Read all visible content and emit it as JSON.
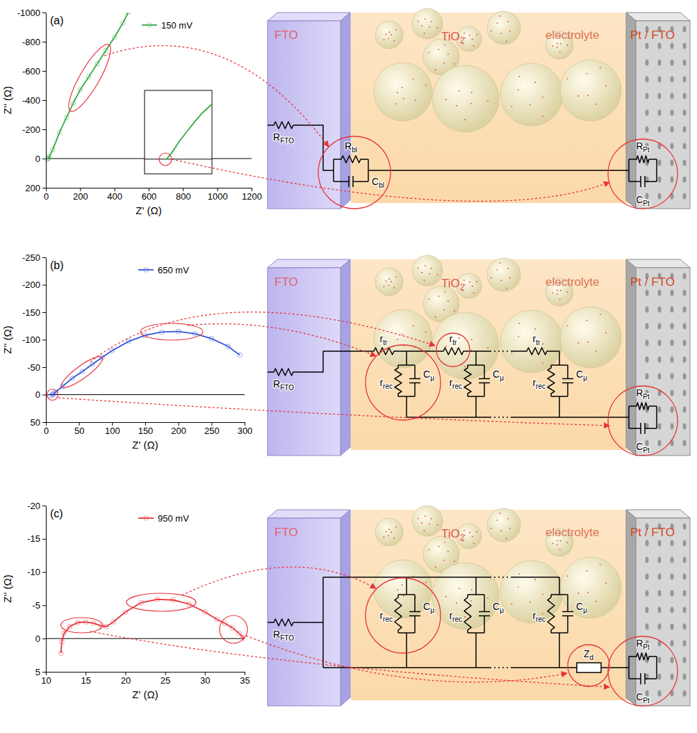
{
  "chart_data": [
    {
      "type": "line",
      "panel": "(a)",
      "x_label": "Z' (Ω)",
      "y_label": "Z'' (Ω)",
      "xlim": [
        0,
        1200
      ],
      "xticks": [
        0,
        200,
        400,
        600,
        800,
        1000,
        1200
      ],
      "ylim": [
        200,
        -1000
      ],
      "yticks": [
        -1000,
        -800,
        -600,
        -400,
        -200,
        0,
        200
      ],
      "x": [
        10,
        12,
        15,
        20,
        40,
        80,
        120,
        160,
        200,
        250,
        300,
        350,
        400,
        450,
        480
      ],
      "series": [
        {
          "name": "150 mV",
          "color": "#39a845",
          "marker": "circle",
          "values": [
            3,
            0,
            -5,
            -15,
            -60,
            -180,
            -280,
            -380,
            -470,
            -560,
            -650,
            -740,
            -830,
            -930,
            -1000
          ]
        }
      ],
      "legend": "upper center",
      "hlines": [
        0
      ],
      "inset": {
        "xlim": [
          -100,
          250
        ],
        "ylim": [
          150,
          -700
        ]
      }
    },
    {
      "type": "line",
      "panel": "(b)",
      "x_label": "Z' (Ω)",
      "y_label": "Z'' (Ω)",
      "xlim": [
        0,
        300
      ],
      "xticks": [
        0,
        50,
        100,
        150,
        200,
        250,
        300
      ],
      "ylim": [
        50,
        -250
      ],
      "yticks": [
        -250,
        -200,
        -150,
        -100,
        -50,
        0,
        50
      ],
      "x": [
        8,
        10,
        12,
        15,
        25,
        40,
        55,
        70,
        85,
        100,
        125,
        150,
        175,
        200,
        225,
        250,
        275,
        293
      ],
      "series": [
        {
          "name": "650 mV",
          "color": "#3355dd",
          "marker": "circle",
          "values": [
            2,
            0,
            -2,
            -5,
            -15,
            -30,
            -42,
            -55,
            -68,
            -80,
            -97,
            -108,
            -114,
            -115,
            -111,
            -102,
            -88,
            -72
          ]
        }
      ],
      "legend": "upper center",
      "hlines": [
        0
      ]
    },
    {
      "type": "line",
      "panel": "(c)",
      "x_label": "Z' (Ω)",
      "y_label": "Z'' (Ω)",
      "xlim": [
        10,
        35
      ],
      "xticks": [
        10,
        15,
        20,
        25,
        30,
        35
      ],
      "ylim": [
        5,
        -20
      ],
      "yticks": [
        -20,
        -15,
        -10,
        -5,
        0,
        5
      ],
      "x": [
        11.9,
        12,
        12.3,
        13,
        14,
        15,
        16,
        17,
        17.6,
        18.5,
        20,
        22,
        24,
        26,
        28,
        30,
        31.5,
        32.5,
        33.5,
        34.3,
        34.8,
        35
      ],
      "series": [
        {
          "name": "950 mV",
          "color": "#e8333a",
          "marker": "circle",
          "values": [
            2.2,
            0.5,
            -0.8,
            -1.8,
            -2.4,
            -2.5,
            -2.3,
            -1.9,
            -1.8,
            -2.5,
            -4,
            -5.4,
            -5.9,
            -5.8,
            -5.2,
            -4,
            -2.9,
            -2.3,
            -1.6,
            -0.8,
            -0.2,
            0
          ]
        }
      ],
      "legend": "upper center",
      "hlines": [
        0
      ]
    }
  ],
  "diagram": {
    "labels": {
      "fto": "FTO",
      "tio2": "TiO",
      "tio2_sub": "2",
      "electrolyte": "electrolyte",
      "pt": "Pt / FTO"
    },
    "elements": {
      "R_FTO": {
        "main": "R",
        "sub": "FTO"
      },
      "R_bl": {
        "main": "R",
        "sub": "bl"
      },
      "C_bl": {
        "main": "C",
        "sub": "bl"
      },
      "R_Pt": {
        "main": "R",
        "sub": "Pt"
      },
      "C_Pt": {
        "main": "C",
        "sub": "Pt"
      },
      "r_tr": {
        "main": "r",
        "sub": "tr"
      },
      "r_rec": {
        "main": "r",
        "sub": "rec"
      },
      "C_mu": {
        "main": "C",
        "sub": "μ"
      },
      "Z_d": {
        "main": "Z",
        "sub": "d"
      }
    }
  }
}
